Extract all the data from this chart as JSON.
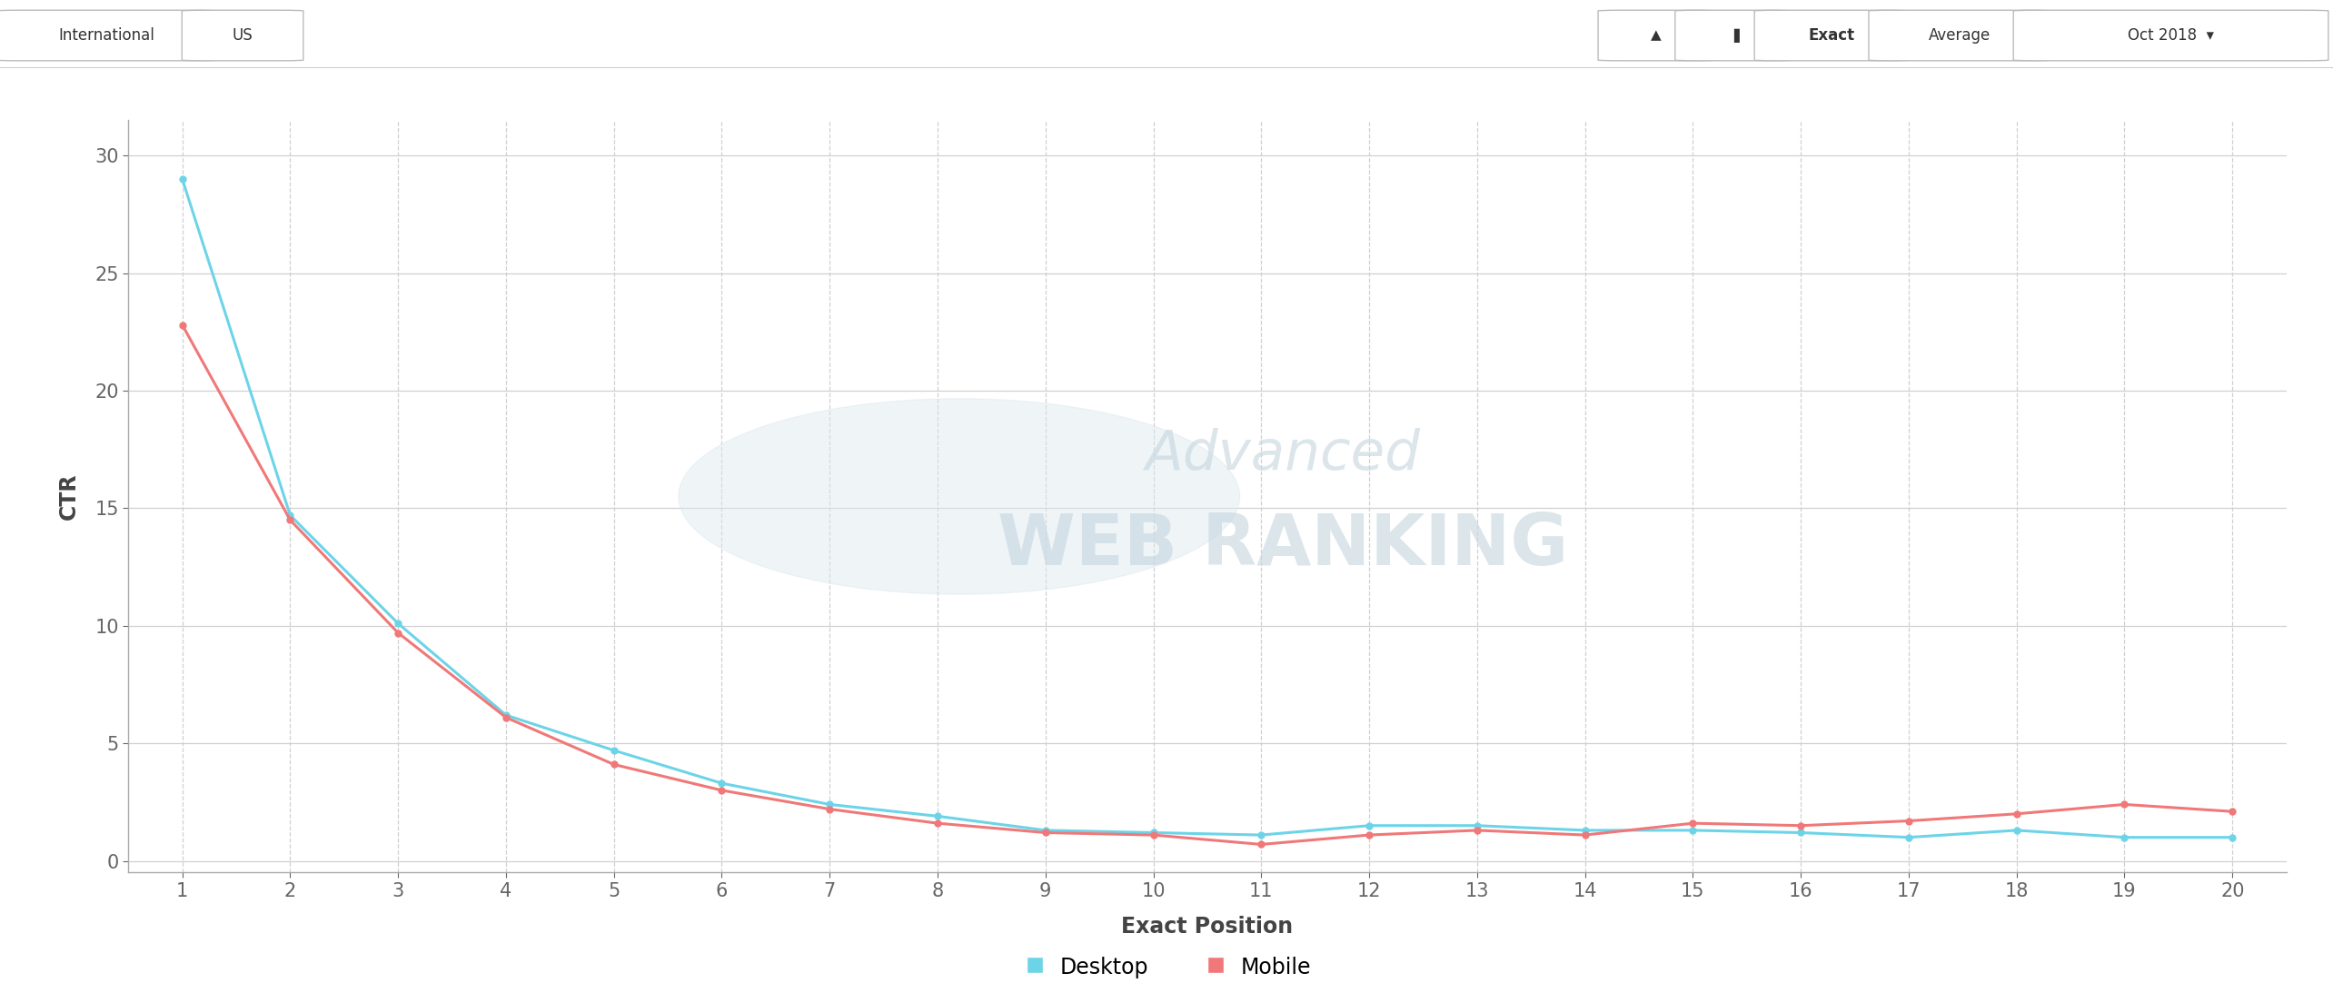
{
  "positions": [
    1,
    2,
    3,
    4,
    5,
    6,
    7,
    8,
    9,
    10,
    11,
    12,
    13,
    14,
    15,
    16,
    17,
    18,
    19,
    20
  ],
  "desktop_ctr": [
    29.0,
    14.7,
    10.1,
    6.2,
    4.7,
    3.3,
    2.4,
    1.9,
    1.3,
    1.2,
    1.1,
    1.5,
    1.5,
    1.3,
    1.3,
    1.2,
    1.0,
    1.3,
    1.0,
    1.0
  ],
  "mobile_ctr": [
    22.8,
    14.5,
    9.7,
    6.1,
    4.1,
    3.0,
    2.2,
    1.6,
    1.2,
    1.1,
    0.7,
    1.1,
    1.3,
    1.1,
    1.6,
    1.5,
    1.7,
    2.0,
    2.4,
    2.1
  ],
  "desktop_color": "#6dd4e8",
  "mobile_color": "#f07878",
  "background_color": "#ffffff",
  "grid_color": "#d0d0d0",
  "axis_color": "#444444",
  "tick_color": "#666666",
  "xlabel": "Exact Position",
  "ylabel": "CTR",
  "yticks": [
    0,
    5,
    10,
    15,
    20,
    25,
    30
  ],
  "marker_size": 5,
  "line_width": 2.2,
  "legend_labels": [
    "Desktop",
    "Mobile"
  ],
  "watermark_text1": "Advanced",
  "watermark_text2": "WEB RANKING",
  "toolbar_left": [
    "International",
    "US"
  ],
  "toolbar_right_btns": [
    "Exact",
    "Average"
  ],
  "toolbar_date": "Oct 2018"
}
